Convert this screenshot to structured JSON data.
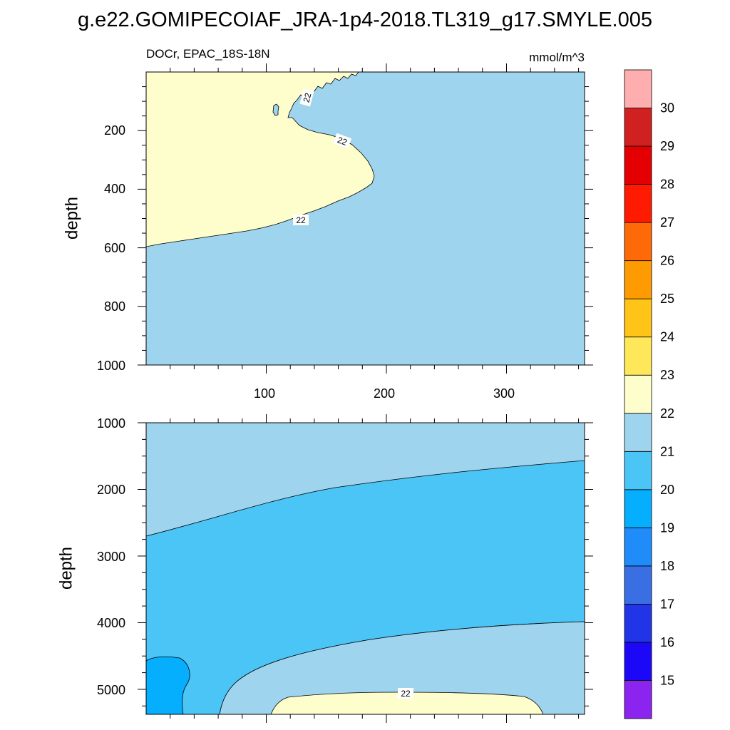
{
  "title": "g.e22.GOMIPECOIAF_JRA-1p4-2018.TL319_g17.SMYLE.005",
  "chart_data": [
    {
      "type": "heatmap",
      "variable": "DOCr, EPAC_18S-18N",
      "units": "mmol/m^3",
      "xlabel": "",
      "ylabel": "depth",
      "xlim": [
        0,
        365
      ],
      "ylim": [
        1000,
        0
      ],
      "xticks": [
        "100",
        "200",
        "300"
      ],
      "yticks": [
        "200",
        "400",
        "600",
        "800",
        "1000"
      ],
      "contour_labels": [
        "22",
        "22",
        "22"
      ],
      "regions": [
        {
          "level": "21-22",
          "description": "background"
        },
        {
          "level": "22-23",
          "description": "upper-left wedge, surface to ~600 m at x=0, tip near x~190 at ~320 m"
        }
      ],
      "boundary_22": [
        {
          "x": 0,
          "y": 595
        },
        {
          "x": 60,
          "y": 560
        },
        {
          "x": 120,
          "y": 515
        },
        {
          "x": 165,
          "y": 470
        },
        {
          "x": 190,
          "y": 410
        },
        {
          "x": 192,
          "y": 340
        },
        {
          "x": 175,
          "y": 265
        },
        {
          "x": 140,
          "y": 195
        },
        {
          "x": 120,
          "y": 160
        },
        {
          "x": 125,
          "y": 110
        },
        {
          "x": 160,
          "y": 50
        },
        {
          "x": 178,
          "y": 0
        }
      ]
    },
    {
      "type": "heatmap",
      "variable": "",
      "units": "",
      "xlabel": "",
      "ylabel": "depth",
      "xlim": [
        0,
        365
      ],
      "ylim": [
        1000,
        5375
      ],
      "xticks": [],
      "yticks": [
        "1000",
        "2000",
        "3000",
        "4000",
        "5000"
      ],
      "contour_labels": [
        "22"
      ],
      "regions": [
        {
          "level": "21-22",
          "description": "upper layer, 1000 m to sloping boundary (2700 m at x=0, 1570 m at x=365)"
        },
        {
          "level": "20-21",
          "description": "middle band down to ~4900 m at x=0 rising to ~3950 m at x=365"
        },
        {
          "level": "21-22",
          "description": "lower layer above the bottom"
        },
        {
          "level": "22-23",
          "description": "bottom patch x~105-330 below ~5060 m"
        },
        {
          "level": "19-20",
          "description": "small bottom-left patch x~0-37 below ~4520 m"
        }
      ]
    }
  ],
  "colorbar": {
    "levels": [
      "15",
      "16",
      "17",
      "18",
      "19",
      "20",
      "21",
      "22",
      "23",
      "24",
      "25",
      "26",
      "27",
      "28",
      "29",
      "30"
    ],
    "colors": [
      "#8a24ee",
      "#1c08f6",
      "#2234e8",
      "#3a6fe4",
      "#1f8cfa",
      "#06aefe",
      "#4bc4f6",
      "#9fd4ee",
      "#fefecc",
      "#fee85a",
      "#fec418",
      "#fe9a02",
      "#fe6a08",
      "#fe1b02",
      "#e40002",
      "#d02020",
      "#feaeae"
    ]
  },
  "colors": {
    "c21": "#9fd4ee",
    "c22": "#fefecc",
    "c20": "#4bc4f6",
    "c19": "#06aefe"
  }
}
